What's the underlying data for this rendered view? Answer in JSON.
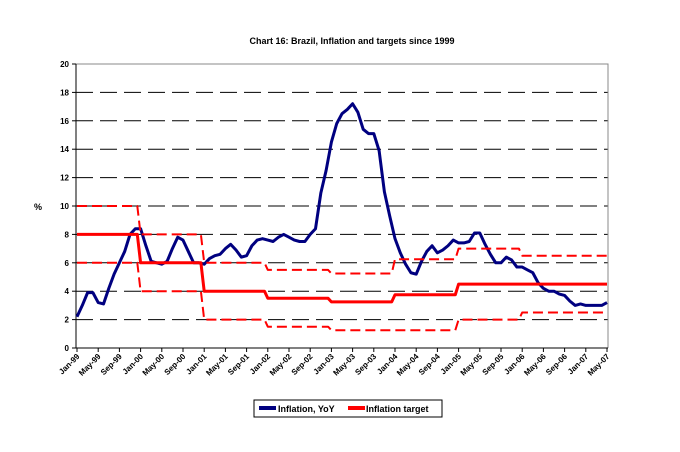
{
  "chart_data": {
    "type": "line",
    "title": "Chart 16: Brazil, Inflation and targets since 1999",
    "ylabel": "%",
    "xlabel": "",
    "ylim": [
      0,
      20
    ],
    "yticks": [
      0,
      2,
      4,
      6,
      8,
      10,
      12,
      14,
      16,
      18,
      20
    ],
    "grid": "horizontal dashed",
    "legend_placement": "bottom",
    "x_start": "Jan-99",
    "x_end": "May-07",
    "x_tick_labels": [
      "Jan-99",
      "May-99",
      "Sep-99",
      "Jan-00",
      "May-00",
      "Sep-00",
      "Jan-01",
      "May-01",
      "Sep-01",
      "Jan-02",
      "May-02",
      "Sep-02",
      "Jan-03",
      "May-03",
      "Sep-03",
      "Jan-04",
      "May-04",
      "Sep-04",
      "Jan-05",
      "May-05",
      "Sep-05",
      "Jan-06",
      "May-06",
      "Sep-06",
      "Jan-07",
      "May-07"
    ],
    "series": [
      {
        "name": "Inflation, YoY",
        "color": "#000080",
        "style": "solid",
        "values": [
          2.2,
          3.0,
          3.9,
          3.9,
          3.2,
          3.1,
          4.2,
          5.2,
          6.0,
          6.8,
          8.0,
          8.4,
          8.4,
          7.2,
          6.1,
          6.0,
          5.9,
          6.1,
          7.0,
          7.8,
          7.6,
          6.8,
          6.0,
          6.0,
          5.9,
          6.3,
          6.5,
          6.6,
          7.0,
          7.3,
          6.9,
          6.4,
          6.5,
          7.2,
          7.6,
          7.7,
          7.6,
          7.5,
          7.8,
          8.0,
          7.8,
          7.6,
          7.5,
          7.5,
          8.0,
          8.4,
          10.9,
          12.5,
          14.5,
          15.8,
          16.5,
          16.8,
          17.2,
          16.6,
          15.4,
          15.1,
          15.1,
          13.9,
          11.0,
          9.3,
          7.7,
          6.7,
          5.9,
          5.3,
          5.2,
          6.1,
          6.8,
          7.2,
          6.7,
          6.9,
          7.2,
          7.6,
          7.4,
          7.4,
          7.5,
          8.1,
          8.1,
          7.3,
          6.6,
          6.0,
          6.0,
          6.4,
          6.2,
          5.7,
          5.7,
          5.5,
          5.3,
          4.6,
          4.2,
          4.0,
          4.0,
          3.8,
          3.7,
          3.3,
          3.0,
          3.1,
          3.0,
          3.0,
          3.0,
          3.0,
          3.2
        ]
      },
      {
        "name": "Inflation target",
        "color": "#ff0000",
        "style": "solid",
        "yearly": [
          8,
          6,
          4,
          3.5,
          3.25,
          3.75,
          4.5,
          4.5,
          4.5
        ]
      },
      {
        "color": "#ff0000",
        "style": "dashed",
        "yearly": [
          10,
          8,
          6,
          5.5,
          5.25,
          6.25,
          7,
          6.5,
          6.5
        ]
      },
      {
        "color": "#ff0000",
        "style": "dashed",
        "yearly": [
          6,
          4,
          2,
          1.5,
          1.25,
          1.25,
          2,
          2.5,
          2.5
        ]
      }
    ]
  }
}
